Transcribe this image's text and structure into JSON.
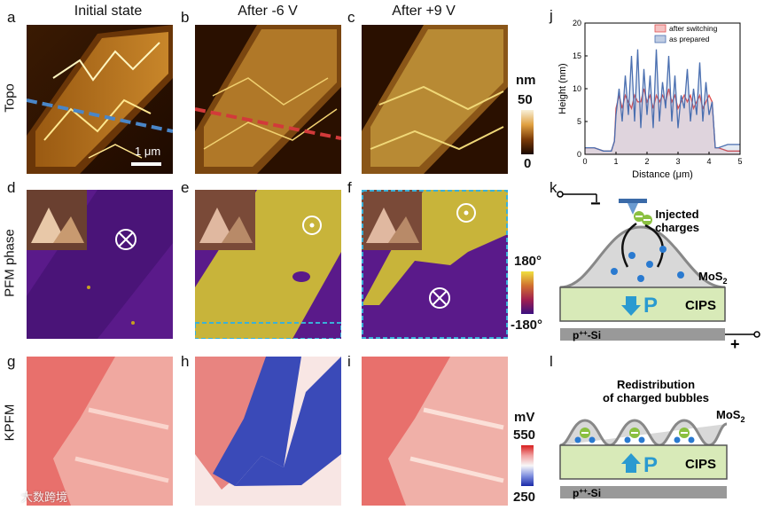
{
  "column_titles": [
    "Initial state",
    "After -6 V",
    "After +9 V"
  ],
  "row_titles": [
    "Topo",
    "PFM phase",
    "KPFM"
  ],
  "panel_labels": [
    "a",
    "b",
    "c",
    "d",
    "e",
    "f",
    "g",
    "h",
    "i",
    "j",
    "k",
    "l"
  ],
  "scale_bar": "1 μm",
  "topo_colorbar": {
    "unit": "nm",
    "max": "50",
    "min": "0"
  },
  "phase_colorbar": {
    "max": "180°",
    "min": "-180°"
  },
  "kpfm_colorbar": {
    "unit": "mV",
    "max": "550",
    "min": "250"
  },
  "panel_k": {
    "title_line1": "Injected",
    "title_line2": "charges",
    "mos2": "MoS",
    "mos2_sub": "2",
    "cips": "CIPS",
    "substrate": "p",
    "substrate_sup": "++",
    "substrate_rest": "-Si",
    "polarization": "P",
    "minus": "−",
    "plus": "+"
  },
  "panel_l": {
    "title_line1": "Redistribution",
    "title_line2": "of charged bubbles",
    "mos2": "MoS",
    "mos2_sub": "2",
    "cips": "CIPS",
    "substrate": "p",
    "substrate_sup": "++",
    "substrate_rest": "-Si",
    "polarization": "P"
  },
  "watermark": "大数跨境",
  "colors": {
    "topo_dark": "#2b1200",
    "topo_light": "#f0d070",
    "phase_purple": "#5a1a8a",
    "phase_yellow": "#c8b43a",
    "kpfm_red": "#e8706c",
    "kpfm_blue": "#3a4ab8",
    "dash_blue": "#4a86c8",
    "dash_red": "#d23a3a",
    "cyan": "#3ab0d8"
  },
  "chart_data": {
    "type": "line",
    "title": "",
    "xlabel": "Distance (μm)",
    "ylabel": "Height (nm)",
    "xlim": [
      0,
      5
    ],
    "ylim": [
      0,
      20
    ],
    "xticks": [
      "0",
      "1",
      "2",
      "3",
      "4",
      "5"
    ],
    "yticks": [
      "0",
      "5",
      "10",
      "15",
      "20"
    ],
    "legend": [
      "after switching",
      "as prepared"
    ],
    "series": [
      {
        "name": "after switching",
        "color": "#e05050",
        "x": [
          0,
          0.3,
          0.6,
          0.85,
          0.95,
          1.0,
          1.1,
          1.2,
          1.3,
          1.4,
          1.5,
          1.6,
          1.7,
          1.8,
          1.9,
          2.0,
          2.1,
          2.2,
          2.3,
          2.4,
          2.5,
          2.6,
          2.7,
          2.8,
          2.9,
          3.0,
          3.1,
          3.2,
          3.3,
          3.4,
          3.5,
          3.6,
          3.7,
          3.8,
          3.9,
          4.0,
          4.1,
          4.2,
          4.3,
          4.6,
          5.0
        ],
        "y": [
          1,
          1,
          0.5,
          0.5,
          2,
          7,
          9,
          7,
          9,
          8,
          7,
          9,
          8,
          8,
          10,
          8,
          9,
          7,
          9,
          8,
          9,
          8,
          10,
          8,
          9,
          7,
          8,
          9,
          8,
          9,
          7,
          8,
          9,
          7,
          8,
          9,
          8,
          1,
          1,
          0.5,
          0.5
        ]
      },
      {
        "name": "as prepared",
        "color": "#4a6fb0",
        "x": [
          0,
          0.3,
          0.6,
          0.85,
          0.95,
          1.0,
          1.1,
          1.2,
          1.3,
          1.4,
          1.5,
          1.6,
          1.7,
          1.8,
          1.9,
          2.0,
          2.1,
          2.2,
          2.3,
          2.4,
          2.5,
          2.6,
          2.7,
          2.8,
          2.9,
          3.0,
          3.1,
          3.2,
          3.3,
          3.4,
          3.5,
          3.6,
          3.7,
          3.8,
          3.9,
          4.0,
          4.1,
          4.2,
          4.3,
          4.6,
          5.0
        ],
        "y": [
          1,
          1,
          0.5,
          0.5,
          2,
          6,
          10,
          5,
          12,
          6,
          15,
          5,
          16,
          4,
          13,
          6,
          12,
          4,
          16,
          5,
          11,
          7,
          15,
          5,
          12,
          4,
          9,
          7,
          13,
          5,
          10,
          6,
          14,
          5,
          11,
          6,
          8,
          1,
          1,
          1.5,
          1.5
        ]
      }
    ]
  }
}
